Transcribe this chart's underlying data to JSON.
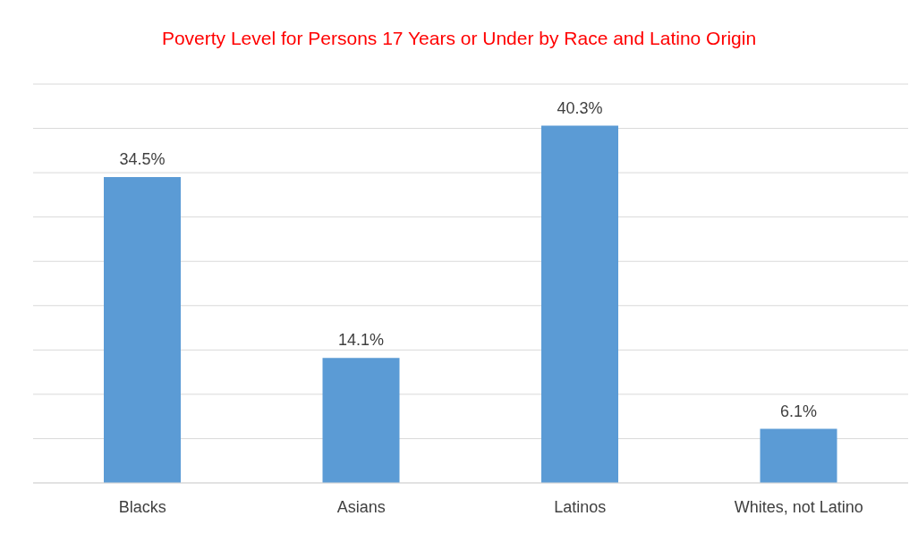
{
  "chart_data": {
    "type": "bar",
    "title": "Poverty Level for Persons 17 Years or Under by Race and Latino Origin",
    "categories": [
      "Blacks",
      "Asians",
      "Latinos",
      "Whites, not Latino"
    ],
    "values": [
      34.5,
      14.1,
      40.3,
      6.1
    ],
    "value_labels": [
      "34.5%",
      "14.1%",
      "40.3%",
      "6.1%"
    ],
    "color": "#5b9bd5",
    "ylim": [
      0,
      45
    ],
    "yticks": [
      {
        "value": 0,
        "label": null
      },
      {
        "value": 5,
        "label": null
      },
      {
        "value": 10,
        "label": null
      },
      {
        "value": 15,
        "label": null
      },
      {
        "value": 20,
        "label": null
      },
      {
        "value": 25,
        "label": null
      },
      {
        "value": 30,
        "label": null
      },
      {
        "value": 35,
        "label": null
      },
      {
        "value": 40,
        "label": null
      },
      {
        "value": 45,
        "label": null
      }
    ],
    "tick_labels": "x",
    "grid": "y"
  }
}
